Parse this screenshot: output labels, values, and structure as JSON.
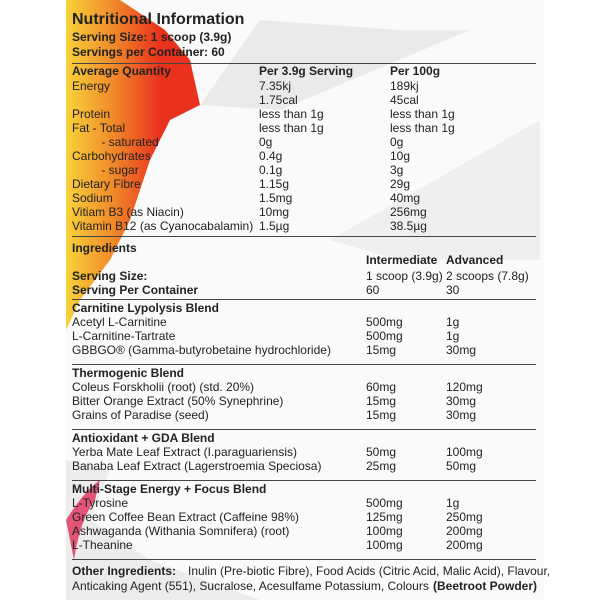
{
  "colors": {
    "flame_red": "#e8321e",
    "flame_yellow": "#f7d23a",
    "accent_pink": "#e0305a"
  },
  "title": "Nutritional Information",
  "serving_size": "Serving Size: 1 scoop (3.9g)",
  "servings_per_container": "Servings per Container: 60",
  "nutrition": {
    "headers": [
      "Average Quantity",
      "Per 3.9g Serving",
      "Per 100g"
    ],
    "rows": [
      [
        "Energy",
        "7.35kj",
        "189kj"
      ],
      [
        "",
        "1.75cal",
        "45cal"
      ],
      [
        "Protein",
        "less than 1g",
        "less than 1g"
      ],
      [
        "Fat - Total",
        "less than 1g",
        "less than 1g"
      ],
      [
        "    - saturated",
        "0g",
        "0g"
      ],
      [
        "Carbohydrates",
        "0.4g",
        "10g"
      ],
      [
        "    - sugar",
        "0.1g",
        "3g"
      ],
      [
        "Dietary Fibre",
        "1.15g",
        "29g"
      ],
      [
        "Sodium",
        "1.5mg",
        "40mg"
      ],
      [
        "Vitiam B3 (as Niacin)",
        "10mg",
        "256mg"
      ],
      [
        "Vitamin B12 (as Cyanocabalamin)",
        "1.5µg",
        "38.5µg"
      ]
    ]
  },
  "ingredients": {
    "title": "Ingredients",
    "headers": [
      "Intermediate",
      "Advanced"
    ],
    "serving_size": [
      "Serving Size:",
      "1 scoop (3.9g)",
      "2 scoops (7.8g)"
    ],
    "per_container": [
      "Serving Per Container",
      "60",
      "30"
    ],
    "blends": [
      {
        "name": "Carnitine Lypolysis Blend",
        "items": [
          [
            "Acetyl L-Carnitine",
            "500mg",
            "1g"
          ],
          [
            "L-Carnitine-Tartrate",
            "500mg",
            "1g"
          ],
          [
            "GBBGO® (Gamma-butyrobetaine hydrochloride)",
            "15mg",
            "30mg"
          ]
        ]
      },
      {
        "name": "Thermogenic Blend",
        "items": [
          [
            "Coleus Forskholii (root) (std. 20%)",
            "60mg",
            "120mg"
          ],
          [
            "Bitter Orange Extract (50% Synephrine)",
            "15mg",
            "30mg"
          ],
          [
            "Grains of Paradise (seed)",
            "15mg",
            "30mg"
          ]
        ]
      },
      {
        "name": "Antioxidant + GDA Blend",
        "items": [
          [
            "Yerba Mate Leaf Extract (I.paraguariensis)",
            "50mg",
            "100mg"
          ],
          [
            "Banaba Leaf Extract (Lagerstroemia Speciosa)",
            "25mg",
            "50mg"
          ]
        ]
      },
      {
        "name": "Multi-Stage Energy + Focus Blend",
        "items": [
          [
            "L-Tyrosine",
            "500mg",
            "1g"
          ],
          [
            "Green Coffee Bean Extract (Caffeine 98%)",
            "125mg",
            "250mg"
          ],
          [
            "Ashwaganda (Withania Somnifera) (root)",
            "100mg",
            "200mg"
          ],
          [
            "L-Theanine",
            "100mg",
            "200mg"
          ]
        ]
      }
    ],
    "other_label": "Other Ingredients:",
    "other_text_1": "Inulin (Pre-biotic Fibre), Food Acids (Citric Acid, Malic Acid), Flavour,",
    "other_text_2": "Anticaking Agent (551), Sucralose, Acesulfame Potassium, Colours",
    "other_text_bold": "(Beetroot Powder)"
  }
}
